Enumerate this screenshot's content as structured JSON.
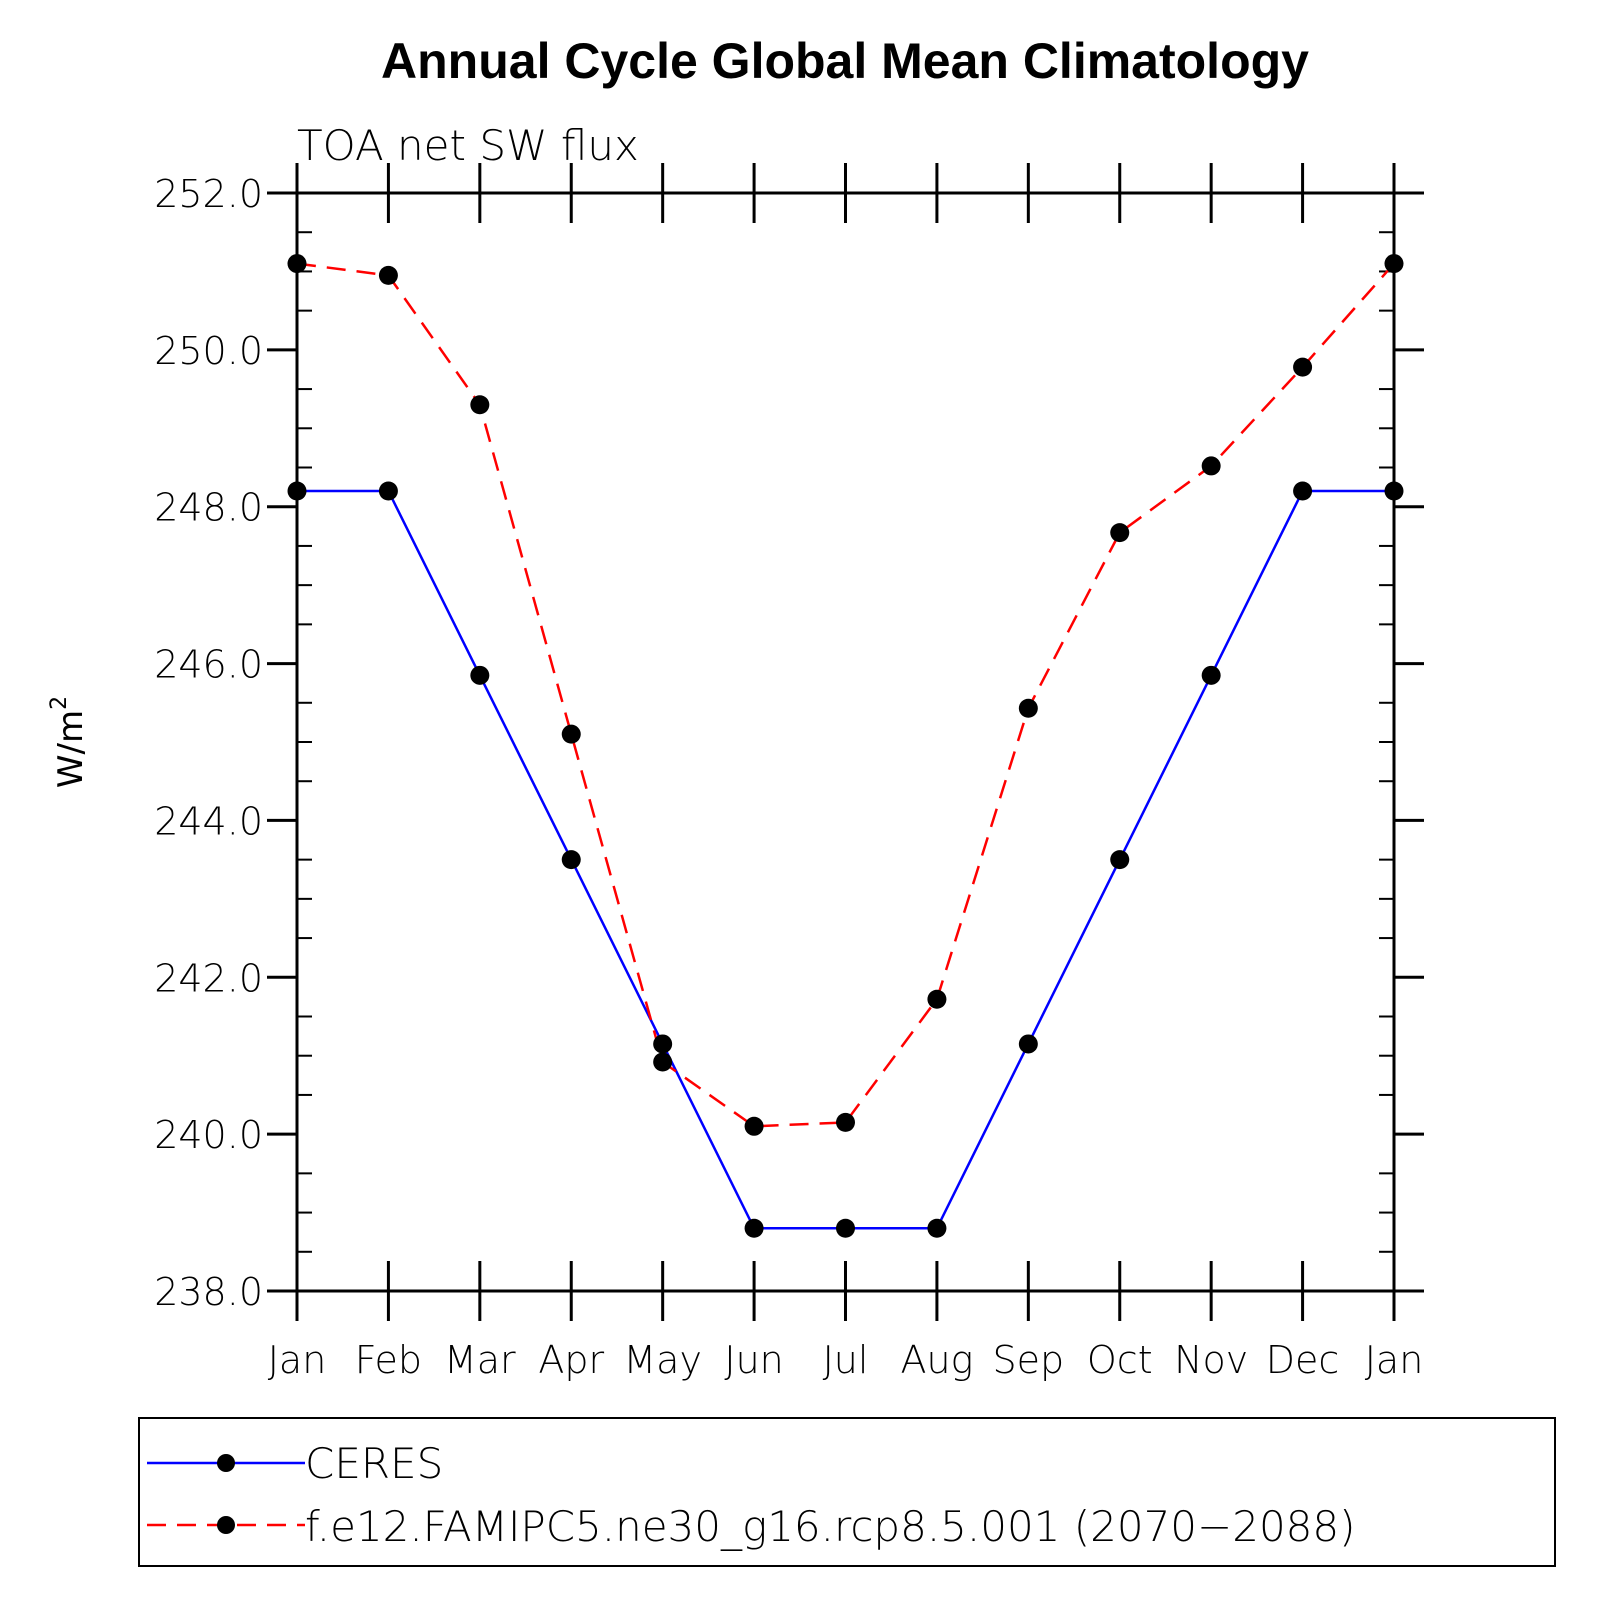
{
  "chart_data": {
    "type": "line",
    "title": "Annual Cycle Global Mean Climatology",
    "subtitle": "TOA net SW flux",
    "ylabel": "W/m",
    "ylabel_sup": "2",
    "ylim": [
      238.0,
      252.0
    ],
    "y_ticks": [
      "238.0",
      "240.0",
      "242.0",
      "244.0",
      "246.0",
      "248.0",
      "250.0",
      "252.0"
    ],
    "categories": [
      "Jan",
      "Feb",
      "Mar",
      "Apr",
      "May",
      "Jun",
      "Jul",
      "Aug",
      "Sep",
      "Oct",
      "Nov",
      "Dec",
      "Jan"
    ],
    "series": [
      {
        "name": "CERES",
        "color": "#0000ff",
        "dash": "solid",
        "values": [
          248.2,
          248.2,
          245.85,
          243.5,
          241.15,
          238.8,
          238.8,
          238.8,
          241.15,
          243.5,
          245.85,
          248.2,
          248.2
        ]
      },
      {
        "name": "f.e12.FAMIPC5.ne30_g16.rcp8.5.001 (2070−2088)",
        "color": "#ff0000",
        "dash": "dashed",
        "values": [
          251.1,
          250.95,
          249.3,
          245.1,
          240.92,
          240.1,
          240.15,
          241.72,
          245.43,
          247.67,
          248.52,
          249.78,
          251.1
        ]
      }
    ],
    "legend": "bottom",
    "grid": false
  }
}
